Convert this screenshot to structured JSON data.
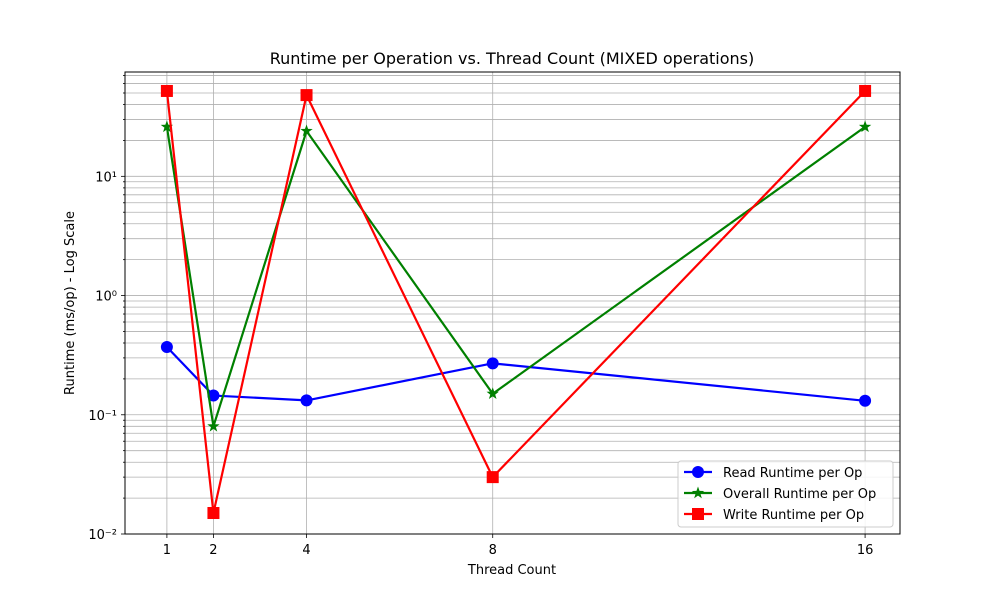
{
  "chart_data": {
    "type": "line",
    "title": "Runtime per Operation vs. Thread Count (MIXED operations)",
    "xlabel": "Thread Count",
    "ylabel": "Runtime (ms/op) - Log Scale",
    "y_scale": "log",
    "x": [
      1,
      2,
      4,
      8,
      16
    ],
    "x_tick_labels": [
      "1",
      "2",
      "4",
      "8",
      "16"
    ],
    "xlim": [
      0.1,
      16.75
    ],
    "ylim": [
      0.01,
      75
    ],
    "y_tick_values": [
      0.01,
      0.1,
      1,
      10
    ],
    "y_tick_labels": [
      "10⁻²",
      "10⁻¹",
      "10⁰",
      "10¹"
    ],
    "grid": true,
    "legend_position": "lower-right",
    "series": [
      {
        "name": "Read Runtime per Op",
        "values": [
          0.37,
          0.145,
          0.132,
          0.27,
          0.131
        ],
        "color": "#0000ff",
        "marker": "circle"
      },
      {
        "name": "Overall Runtime per Op",
        "values": [
          26,
          0.08,
          24,
          0.15,
          26
        ],
        "color": "#008000",
        "marker": "star"
      },
      {
        "name": "Write Runtime per Op",
        "values": [
          52,
          0.015,
          48,
          0.03,
          52
        ],
        "color": "#ff0000",
        "marker": "square"
      }
    ]
  }
}
